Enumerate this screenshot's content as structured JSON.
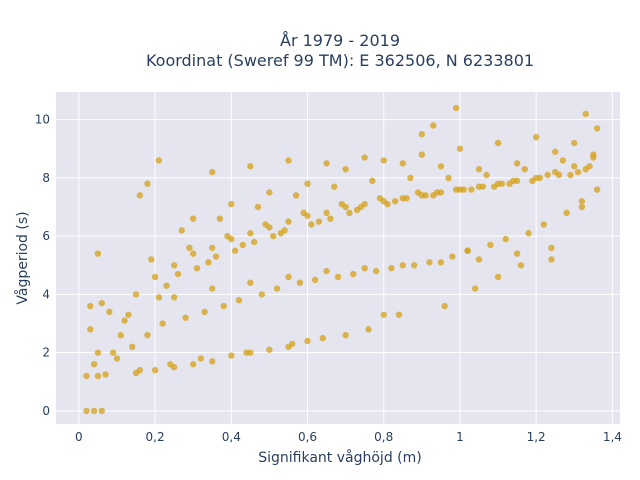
{
  "chart_data": {
    "type": "scatter",
    "title_lines": [
      "År 1979 - 2019",
      "Koordinat (Sweref 99 TM): E 362506, N 6233801"
    ],
    "xlabel": "Signifikant våghöjd (m)",
    "ylabel": "Vågperiod (s)",
    "xlim": [
      -0.06,
      1.42
    ],
    "ylim": [
      -0.45,
      10.95
    ],
    "x_ticks": [
      0,
      0.2,
      0.4,
      0.6,
      0.8,
      1,
      1.2,
      1.4
    ],
    "x_tick_labels": [
      "0",
      "0,2",
      "0,4",
      "0,6",
      "0,8",
      "1",
      "1,2",
      "1,4"
    ],
    "y_ticks": [
      0,
      2,
      4,
      6,
      8,
      10
    ],
    "y_tick_labels": [
      "0",
      "2",
      "4",
      "6",
      "8",
      "10"
    ],
    "grid": true,
    "colors": {
      "marker": "#d4a017",
      "plot_bg": "#e5e5f0",
      "grid": "#ffffff",
      "text": "#2a3f5f"
    },
    "series": [
      {
        "x": [
          0.02,
          0.05,
          0.07,
          0.04,
          0.1,
          0.14,
          0.18,
          0.12,
          0.08,
          0.03,
          0.06,
          0.09,
          0.15,
          0.2,
          0.25,
          0.3,
          0.35,
          0.4,
          0.45,
          0.5,
          0.55,
          0.6,
          0.65,
          0.7,
          0.75,
          0.8,
          0.85,
          0.9,
          0.95,
          1.0,
          1.05,
          1.1,
          1.15,
          1.2,
          1.25,
          1.3,
          1.35,
          0.22,
          0.28,
          0.33,
          0.38,
          0.42,
          0.48,
          0.52,
          0.58,
          0.62,
          0.68,
          0.72,
          0.78,
          0.82,
          0.88,
          0.92,
          0.98,
          1.02,
          1.08,
          1.12,
          1.18,
          1.22,
          1.28,
          1.32,
          0.16,
          0.24,
          0.32,
          0.44,
          0.56,
          0.64,
          0.76,
          0.84,
          0.96,
          1.04,
          1.16,
          1.24,
          1.36,
          0.27,
          0.37,
          0.47,
          0.57,
          0.67,
          0.77,
          0.87,
          0.97,
          1.07,
          1.17,
          1.27,
          0.19,
          0.29,
          0.39,
          0.49,
          0.59,
          0.69,
          0.79,
          0.89,
          0.99,
          1.09,
          1.19,
          1.29,
          0.11,
          0.13,
          0.21,
          0.23,
          0.26,
          0.31,
          0.34,
          0.36,
          0.41,
          0.43,
          0.46,
          0.51,
          0.53,
          0.54,
          0.61,
          0.63,
          0.66,
          0.71,
          0.73,
          0.74,
          0.81,
          0.83,
          0.86,
          0.91,
          0.93,
          0.94,
          1.01,
          1.03,
          1.06,
          1.11,
          1.13,
          1.14,
          1.21,
          1.23,
          1.26,
          1.31,
          1.33,
          1.34,
          0.02,
          0.04,
          0.06,
          0.03,
          0.05,
          0.05,
          0.15,
          0.2,
          0.25,
          0.3,
          0.35,
          0.4,
          0.45,
          0.5,
          0.55,
          0.6,
          0.3,
          0.4,
          0.5,
          0.6,
          0.7,
          0.8,
          0.9,
          1.0,
          1.1,
          1.2,
          0.35,
          0.45,
          0.55,
          0.65,
          0.75,
          0.85,
          0.95,
          1.05,
          1.15,
          1.25,
          1.35,
          0.25,
          0.35,
          0.45,
          0.55,
          0.65,
          0.75,
          0.85,
          0.95,
          1.05,
          1.15,
          0.7,
          0.8,
          1.02,
          1.1,
          1.24,
          1.3,
          1.33,
          1.36,
          0.99,
          0.93,
          0.16,
          0.18,
          0.21,
          0.9,
          1.32
        ],
        "y": [
          1.2,
          1.2,
          1.25,
          1.6,
          1.8,
          2.2,
          2.6,
          3.1,
          3.4,
          3.6,
          3.7,
          2.0,
          4.0,
          4.6,
          5.0,
          5.4,
          5.6,
          5.9,
          6.1,
          6.3,
          6.5,
          6.7,
          6.8,
          7.0,
          7.1,
          7.2,
          7.3,
          7.4,
          7.5,
          7.6,
          7.7,
          7.8,
          7.9,
          8.0,
          8.2,
          8.4,
          8.7,
          3.0,
          3.2,
          3.4,
          3.6,
          3.8,
          4.0,
          4.2,
          4.4,
          4.5,
          4.6,
          4.7,
          4.8,
          4.9,
          5.0,
          5.1,
          5.3,
          5.5,
          5.7,
          5.9,
          6.1,
          6.4,
          6.8,
          7.2,
          1.4,
          1.6,
          1.8,
          2.0,
          2.3,
          2.5,
          2.8,
          3.3,
          3.6,
          4.2,
          5.0,
          5.6,
          7.6,
          6.2,
          6.6,
          7.0,
          7.4,
          7.7,
          7.9,
          8.0,
          8.0,
          8.1,
          8.3,
          8.6,
          5.2,
          5.6,
          6.0,
          6.4,
          6.8,
          7.1,
          7.3,
          7.5,
          7.6,
          7.7,
          7.9,
          8.1,
          2.6,
          3.3,
          3.9,
          4.3,
          4.7,
          4.9,
          5.1,
          5.3,
          5.5,
          5.7,
          5.8,
          6.0,
          6.1,
          6.2,
          6.4,
          6.5,
          6.6,
          6.8,
          6.9,
          7.0,
          7.1,
          7.2,
          7.3,
          7.4,
          7.4,
          7.5,
          7.6,
          7.6,
          7.7,
          7.8,
          7.8,
          7.9,
          8.0,
          8.1,
          8.1,
          8.2,
          8.3,
          8.4,
          0.0,
          0.0,
          0.0,
          2.8,
          5.4,
          2.0,
          1.3,
          1.4,
          1.5,
          1.6,
          1.7,
          1.9,
          2.0,
          2.1,
          2.2,
          2.4,
          6.6,
          7.1,
          7.5,
          7.8,
          8.3,
          8.6,
          8.8,
          9.0,
          9.2,
          9.4,
          8.2,
          8.4,
          8.6,
          8.5,
          8.7,
          8.5,
          8.4,
          8.3,
          8.5,
          8.9,
          8.8,
          3.9,
          4.2,
          4.4,
          4.6,
          4.8,
          4.9,
          5.0,
          5.1,
          5.2,
          5.4,
          2.6,
          3.3,
          5.5,
          4.6,
          5.2,
          9.2,
          10.2,
          9.7,
          10.4,
          9.8,
          7.4,
          7.8,
          8.6,
          9.5,
          7.0
        ]
      }
    ]
  }
}
